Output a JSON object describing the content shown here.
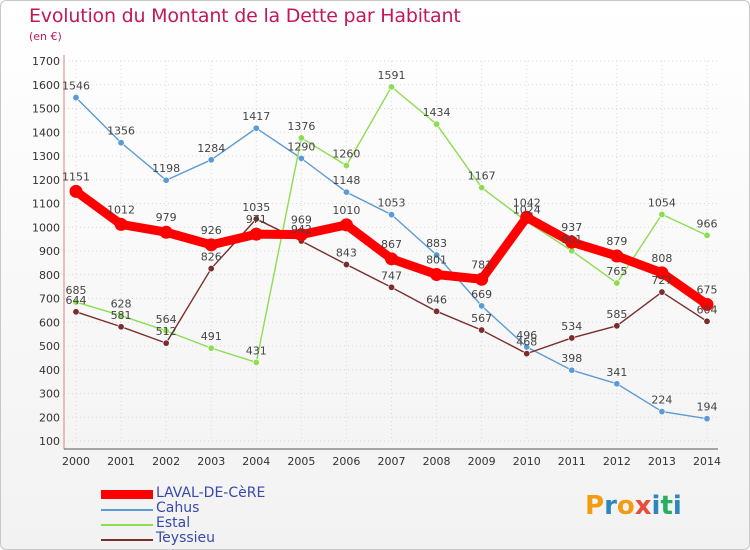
{
  "title": "Evolution du Montant de la Dette par Habitant",
  "subtitle": "(en €)",
  "brand": {
    "letters": [
      "P",
      "r",
      "o",
      "x",
      "i",
      "t",
      "i"
    ],
    "colors": [
      "#f39c12",
      "#2e86c1",
      "#f39c12",
      "#e74c3c",
      "#2e86c1",
      "#27ae60",
      "#2e86c1"
    ]
  },
  "chart_data": {
    "type": "line",
    "x": [
      2000,
      2001,
      2002,
      2003,
      2004,
      2005,
      2006,
      2007,
      2008,
      2009,
      2010,
      2011,
      2012,
      2013,
      2014
    ],
    "yticks": [
      100,
      200,
      300,
      400,
      500,
      600,
      700,
      800,
      900,
      1000,
      1100,
      1200,
      1300,
      1400,
      1500,
      1600,
      1700
    ],
    "ylim": [
      100,
      1700
    ],
    "legend_position": "bottom-left",
    "series": [
      {
        "name": "LAVAL-DE-CèRE",
        "color": "#ff0000",
        "values": [
          1151,
          1012,
          979,
          926,
          971,
          969,
          1010,
          867,
          801,
          781,
          1042,
          937,
          879,
          808,
          675
        ],
        "labels": [
          "1151",
          "1012",
          "979",
          "926",
          "971",
          "969",
          "1010",
          "867",
          "801",
          "781",
          "1042",
          "937",
          "879",
          "808",
          "675"
        ]
      },
      {
        "name": "Cahus",
        "color": "#5b9bd5",
        "values": [
          1546,
          1356,
          1198,
          1284,
          1417,
          1290,
          1148,
          1053,
          883,
          669,
          496,
          398,
          341,
          224,
          194
        ],
        "labels": [
          "1546",
          "1356",
          "1198",
          "1284",
          "1417",
          "1290",
          "1148",
          "1053",
          "883",
          "669",
          "496",
          "398",
          "341",
          "224",
          "194"
        ]
      },
      {
        "name": "Estal",
        "color": "#8ddd52",
        "values": [
          685,
          628,
          564,
          491,
          431,
          1376,
          1260,
          1591,
          1434,
          1167,
          1024,
          901,
          765,
          1054,
          966
        ],
        "labels": [
          "685",
          "628",
          "564",
          "491",
          "431",
          "1376",
          "1260",
          "1591",
          "1434",
          "1167",
          "1024",
          "901",
          "765",
          "1054",
          "966"
        ]
      },
      {
        "name": "Teyssieu",
        "color": "#7b2c2c",
        "values": [
          644,
          581,
          512,
          826,
          1035,
          942,
          843,
          747,
          646,
          567,
          468,
          534,
          585,
          727,
          604
        ],
        "labels": [
          "644",
          "581",
          "512",
          "826",
          "1035",
          "942",
          "843",
          "747",
          "646",
          "567",
          "468",
          "534",
          "585",
          "727",
          "604"
        ]
      }
    ]
  }
}
